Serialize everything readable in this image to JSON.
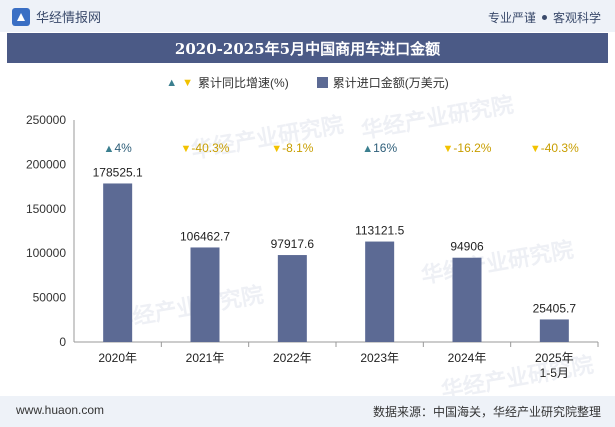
{
  "header": {
    "brand": "华经情报网",
    "slogan_left": "专业严谨",
    "slogan_right": "客观科学"
  },
  "watermark": "华经产业研究院",
  "chart_data": {
    "type": "bar",
    "title": "2020-2025年5月中国商用车进口金额",
    "categories": [
      "2020年",
      "2021年",
      "2022年",
      "2023年",
      "2024年",
      "2025年1-5月"
    ],
    "series": [
      {
        "name": "累计进口金额(万美元)",
        "values": [
          178525.1,
          106462.7,
          97917.6,
          113121.5,
          94906,
          25405.7
        ],
        "color": "#5c6a94"
      }
    ],
    "growth": {
      "name": "累计同比增速(%)",
      "labels": [
        "4%",
        "-40.3%",
        "-8.1%",
        "16%",
        "-16.2%",
        "-40.3%"
      ],
      "directions": [
        "up",
        "down",
        "down",
        "up",
        "down",
        "down"
      ],
      "up_color": "#3b7f8f",
      "down_color": "#f2c200"
    },
    "value_labels": [
      "178525.1",
      "106462.7",
      "97917.6",
      "113121.5",
      "94906",
      "25405.7"
    ],
    "ylim": [
      0,
      250000
    ],
    "yticks": [
      0,
      50000,
      100000,
      150000,
      200000,
      250000
    ],
    "xlabel": "",
    "ylabel": "",
    "legend_position": "top"
  },
  "footer": {
    "site": "www.huaon.com",
    "source": "数据来源：中国海关，华经产业研究院整理"
  }
}
